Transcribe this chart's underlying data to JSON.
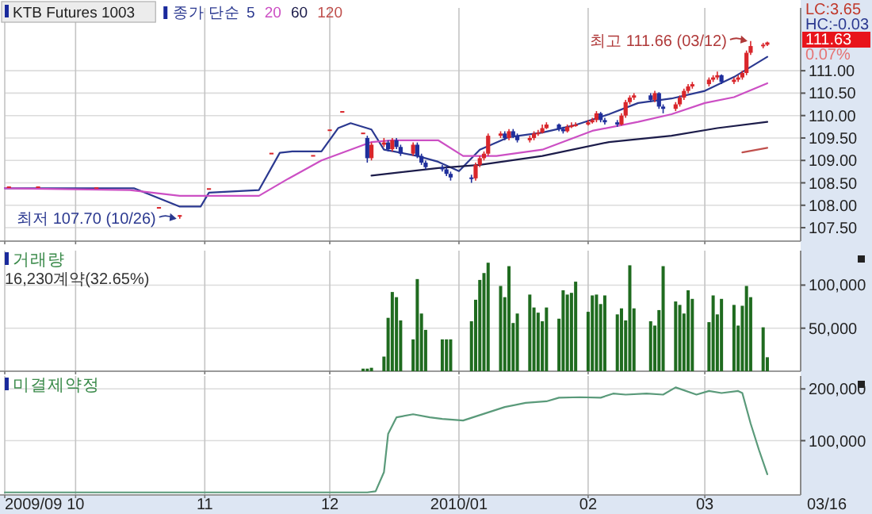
{
  "chart_data": [
    {
      "type": "candlestick",
      "title": "KTB Futures 1003",
      "legend_title": "종가 단순",
      "legend": "top left",
      "grid": true,
      "tick_labels": "y",
      "xlim": [
        "2009-09-14",
        "2010-03-24"
      ],
      "xticks": [
        {
          "value": "2009-09-14",
          "label": null
        },
        {
          "value": "2009-10-01",
          "label": null
        },
        {
          "value": "2009-11-01",
          "label": null
        },
        {
          "value": "2009-12-01",
          "label": null
        },
        {
          "value": "2010-01-01",
          "label": null
        },
        {
          "value": "2010-02-01",
          "label": null
        },
        {
          "value": "2010-03-01",
          "label": null
        }
      ],
      "ylim": [
        107.2,
        112.4
      ],
      "yticks": [
        {
          "value": 107.5,
          "label": "107.50"
        },
        {
          "value": 108,
          "label": "108.00"
        },
        {
          "value": 108.5,
          "label": "108.50"
        },
        {
          "value": 109,
          "label": "109.00"
        },
        {
          "value": 109.5,
          "label": "109.50"
        },
        {
          "value": 110,
          "label": "110.00"
        },
        {
          "value": 110.5,
          "label": "110.50"
        },
        {
          "value": 111,
          "label": "111.00"
        }
      ],
      "x": [
        "2009-09-15",
        "2009-09-22",
        "2009-10-06",
        "2009-10-21",
        "2009-10-26",
        "2009-11-02",
        "2009-11-17",
        "2009-11-27",
        "2009-12-01",
        "2009-12-04",
        "2009-12-09",
        "2009-12-10",
        "2009-12-11",
        "2009-12-14",
        "2009-12-15",
        "2009-12-16",
        "2009-12-17",
        "2009-12-18",
        "2009-12-21",
        "2009-12-22",
        "2009-12-23",
        "2009-12-24",
        "2009-12-28",
        "2009-12-29",
        "2009-12-30",
        "2010-01-04",
        "2010-01-05",
        "2010-01-06",
        "2010-01-07",
        "2010-01-08",
        "2010-01-11",
        "2010-01-12",
        "2010-01-13",
        "2010-01-14",
        "2010-01-15",
        "2010-01-18",
        "2010-01-19",
        "2010-01-20",
        "2010-01-21",
        "2010-01-22",
        "2010-01-25",
        "2010-01-26",
        "2010-01-27",
        "2010-01-28",
        "2010-01-29",
        "2010-02-01",
        "2010-02-02",
        "2010-02-03",
        "2010-02-04",
        "2010-02-05",
        "2010-02-08",
        "2010-02-09",
        "2010-02-10",
        "2010-02-11",
        "2010-02-12",
        "2010-02-16",
        "2010-02-17",
        "2010-02-18",
        "2010-02-19",
        "2010-02-22",
        "2010-02-23",
        "2010-02-24",
        "2010-02-25",
        "2010-02-26",
        "2010-03-02",
        "2010-03-03",
        "2010-03-04",
        "2010-03-05",
        "2010-03-08",
        "2010-03-09",
        "2010-03-10",
        "2010-03-11",
        "2010-03-12",
        "2010-03-15",
        "2010-03-16"
      ],
      "ohlc": [
        [
          108.42,
          108.42,
          108.42,
          108.42
        ],
        [
          108.42,
          108.42,
          108.42,
          108.42
        ],
        [
          108.4,
          108.4,
          108.4,
          108.4
        ],
        [
          107.96,
          107.96,
          107.96,
          107.96
        ],
        [
          107.78,
          107.78,
          107.7,
          107.78
        ],
        [
          108.38,
          108.38,
          108.38,
          108.38
        ],
        [
          109.17,
          109.17,
          109.17,
          109.17
        ],
        [
          109.12,
          109.12,
          109.12,
          109.12
        ],
        [
          109.69,
          109.69,
          109.69,
          109.69
        ],
        [
          110.1,
          110.1,
          110.1,
          110.1
        ],
        [
          109.62,
          109.62,
          109.62,
          109.62
        ],
        [
          109.5,
          109.55,
          108.95,
          109.05
        ],
        [
          109.05,
          109.4,
          109.0,
          109.35
        ],
        [
          109.35,
          109.5,
          109.3,
          109.4
        ],
        [
          109.4,
          109.45,
          109.2,
          109.25
        ],
        [
          109.25,
          109.5,
          109.2,
          109.45
        ],
        [
          109.45,
          109.5,
          109.25,
          109.3
        ],
        [
          109.3,
          109.35,
          109.1,
          109.15
        ],
        [
          109.15,
          109.4,
          109.1,
          109.35
        ],
        [
          109.35,
          109.4,
          109.05,
          109.1
        ],
        [
          109.1,
          109.15,
          108.9,
          108.95
        ],
        [
          108.95,
          109.0,
          108.8,
          108.85
        ],
        [
          108.85,
          108.9,
          108.75,
          108.8
        ],
        [
          108.8,
          108.85,
          108.65,
          108.7
        ],
        [
          108.7,
          108.75,
          108.55,
          108.62
        ],
        [
          108.62,
          108.68,
          108.5,
          108.6
        ],
        [
          108.6,
          108.95,
          108.55,
          108.9
        ],
        [
          108.9,
          109.1,
          108.85,
          109.05
        ],
        [
          109.05,
          109.2,
          109.0,
          109.15
        ],
        [
          109.15,
          109.6,
          109.1,
          109.55
        ],
        [
          109.55,
          109.65,
          109.5,
          109.6
        ],
        [
          109.6,
          109.65,
          109.45,
          109.5
        ],
        [
          109.5,
          109.7,
          109.45,
          109.65
        ],
        [
          109.65,
          109.7,
          109.5,
          109.55
        ],
        [
          109.55,
          109.6,
          109.4,
          109.45
        ],
        [
          109.45,
          109.55,
          109.4,
          109.5
        ],
        [
          109.5,
          109.65,
          109.45,
          109.6
        ],
        [
          109.6,
          109.68,
          109.55,
          109.62
        ],
        [
          109.62,
          109.8,
          109.6,
          109.72
        ],
        [
          109.72,
          109.85,
          109.7,
          109.8
        ],
        [
          109.8,
          109.82,
          109.65,
          109.7
        ],
        [
          109.7,
          109.75,
          109.6,
          109.65
        ],
        [
          109.65,
          109.8,
          109.62,
          109.75
        ],
        [
          109.75,
          109.85,
          109.72,
          109.78
        ],
        [
          109.78,
          109.85,
          109.75,
          109.8
        ],
        [
          109.8,
          109.9,
          109.78,
          109.85
        ],
        [
          109.85,
          109.95,
          109.82,
          109.9
        ],
        [
          109.9,
          110.1,
          109.85,
          110.05
        ],
        [
          110.05,
          110.08,
          109.85,
          109.9
        ],
        [
          109.9,
          109.95,
          109.8,
          109.85
        ],
        [
          109.85,
          109.9,
          109.75,
          109.8
        ],
        [
          109.8,
          110.05,
          109.78,
          110.0
        ],
        [
          110.0,
          110.35,
          109.95,
          110.3
        ],
        [
          110.3,
          110.45,
          110.25,
          110.4
        ],
        [
          110.4,
          110.5,
          110.35,
          110.45
        ],
        [
          110.45,
          110.5,
          110.3,
          110.35
        ],
        [
          110.35,
          110.55,
          110.3,
          110.5
        ],
        [
          110.5,
          110.52,
          110.15,
          110.2
        ],
        [
          110.2,
          110.25,
          110.05,
          110.15
        ],
        [
          110.15,
          110.3,
          110.1,
          110.25
        ],
        [
          110.25,
          110.45,
          110.2,
          110.4
        ],
        [
          110.4,
          110.6,
          110.35,
          110.55
        ],
        [
          110.55,
          110.7,
          110.5,
          110.65
        ],
        [
          110.65,
          110.75,
          110.6,
          110.7
        ],
        [
          110.7,
          110.85,
          110.65,
          110.8
        ],
        [
          110.8,
          110.9,
          110.75,
          110.85
        ],
        [
          110.85,
          110.98,
          110.8,
          110.9
        ],
        [
          110.9,
          110.92,
          110.7,
          110.75
        ],
        [
          110.75,
          110.85,
          110.7,
          110.8
        ],
        [
          110.8,
          110.9,
          110.75,
          110.85
        ],
        [
          110.85,
          111.0,
          110.8,
          110.95
        ],
        [
          110.95,
          111.45,
          110.9,
          111.4
        ],
        [
          111.4,
          111.66,
          111.35,
          111.55
        ],
        [
          111.55,
          111.62,
          111.5,
          111.58
        ],
        [
          111.58,
          111.65,
          111.55,
          111.63
        ]
      ],
      "colors": [
        "#d9262b",
        "#d9262b",
        "#d9262b",
        "#d9262b",
        "#d9262b",
        "#d9262b",
        "#d9262b",
        "#d9262b",
        "#d9262b",
        "#d9262b",
        "#d9262b",
        "#1f2f9c",
        "#d9262b",
        "#d9262b",
        "#1f2f9c",
        "#d9262b",
        "#1f2f9c",
        "#1f2f9c",
        "#d9262b",
        "#1f2f9c",
        "#1f2f9c",
        "#1f2f9c",
        "#1f2f9c",
        "#1f2f9c",
        "#1f2f9c",
        "#1f2f9c",
        "#d9262b",
        "#d9262b",
        "#d9262b",
        "#d9262b",
        "#d9262b",
        "#1f2f9c",
        "#d9262b",
        "#1f2f9c",
        "#1f2f9c",
        "#d9262b",
        "#d9262b",
        "#d9262b",
        "#d9262b",
        "#d9262b",
        "#1f2f9c",
        "#1f2f9c",
        "#d9262b",
        "#d9262b",
        "#d9262b",
        "#d9262b",
        "#d9262b",
        "#d9262b",
        "#1f2f9c",
        "#1f2f9c",
        "#1f2f9c",
        "#d9262b",
        "#d9262b",
        "#d9262b",
        "#d9262b",
        "#1f2f9c",
        "#d9262b",
        "#1f2f9c",
        "#1f2f9c",
        "#d9262b",
        "#d9262b",
        "#d9262b",
        "#d9262b",
        "#d9262b",
        "#d9262b",
        "#d9262b",
        "#d9262b",
        "#1f2f9c",
        "#d9262b",
        "#d9262b",
        "#d9262b",
        "#d9262b",
        "#d9262b",
        "#d9262b",
        "#d9262b"
      ],
      "series": [
        {
          "name": "5",
          "type": "line",
          "color": "#2b3990",
          "x": [
            "2009-09-14",
            "2009-10-15",
            "2009-10-26",
            "2009-10-31",
            "2009-11-02",
            "2009-11-14",
            "2009-11-19",
            "2009-11-22",
            "2009-11-29",
            "2009-12-03",
            "2009-12-06",
            "2009-12-11",
            "2009-12-14",
            "2009-12-22",
            "2009-12-27",
            "2010-01-01",
            "2010-01-06",
            "2010-01-13",
            "2010-01-21",
            "2010-01-29",
            "2010-02-06",
            "2010-02-13",
            "2010-02-21",
            "2010-03-01",
            "2010-03-08",
            "2010-03-16"
          ],
          "values": [
            108.38,
            108.38,
            107.97,
            107.97,
            108.28,
            108.34,
            109.17,
            109.2,
            109.2,
            109.72,
            109.83,
            109.69,
            109.24,
            109.1,
            108.97,
            108.76,
            109.24,
            109.52,
            109.62,
            109.79,
            110.03,
            110.28,
            110.38,
            110.55,
            110.86,
            111.31
          ]
        },
        {
          "name": "20",
          "type": "line",
          "color": "#cc4fc4",
          "x": [
            "2009-09-14",
            "2009-10-14",
            "2009-10-26",
            "2009-11-14",
            "2009-11-21",
            "2009-11-29",
            "2009-12-11",
            "2009-12-16",
            "2009-12-27",
            "2010-01-02",
            "2010-01-10",
            "2010-01-21",
            "2010-02-02",
            "2010-02-13",
            "2010-02-21",
            "2010-03-01",
            "2010-03-08",
            "2010-03-16"
          ],
          "values": [
            108.38,
            108.34,
            108.21,
            108.21,
            108.59,
            109.0,
            109.41,
            109.45,
            109.45,
            109.1,
            109.1,
            109.24,
            109.66,
            109.86,
            110.03,
            110.28,
            110.41,
            110.72
          ]
        },
        {
          "name": "60",
          "type": "line",
          "color": "#1c1c4a",
          "x": [
            "2009-12-11",
            "2009-12-27",
            "2010-01-06",
            "2010-01-21",
            "2010-02-06",
            "2010-02-21",
            "2010-03-04",
            "2010-03-16"
          ],
          "values": [
            108.66,
            108.83,
            108.9,
            109.1,
            109.41,
            109.55,
            109.72,
            109.86
          ]
        },
        {
          "name": "120",
          "type": "line",
          "color": "#c0504d",
          "x": [
            "2010-03-10",
            "2010-03-16"
          ],
          "values": [
            109.18,
            109.28
          ]
        }
      ],
      "annotations": [
        {
          "text": "최고 111.66 (03/12)",
          "x": "2010-03-12",
          "y": 111.66
        },
        {
          "text": "최저 107.70 (10/26)",
          "x": "2009-10-26",
          "y": 107.7
        },
        "LC:3.65",
        "HC:-0.03",
        "111.63",
        "0.07%"
      ]
    },
    {
      "type": "bar",
      "title": "거래량",
      "subtitle": "16,230계약(32.65%)",
      "grid": true,
      "tick_labels": "y",
      "color": "#1f6b1f",
      "xlim": [
        "2009-09-14",
        "2010-03-24"
      ],
      "xticks": [
        {
          "value": "2009-09-14",
          "label": null
        },
        {
          "value": "2009-10-01",
          "label": null
        },
        {
          "value": "2009-11-01",
          "label": null
        },
        {
          "value": "2009-12-01",
          "label": null
        },
        {
          "value": "2010-01-01",
          "label": null
        },
        {
          "value": "2010-02-01",
          "label": null
        },
        {
          "value": "2010-03-01",
          "label": null
        }
      ],
      "ylim": [
        0,
        140000
      ],
      "yticks": [
        {
          "value": 50000,
          "label": "50,000"
        },
        {
          "value": 100000,
          "label": "100,000"
        }
      ],
      "x": [
        "2009-12-09",
        "2009-12-10",
        "2009-12-11",
        "2009-12-14",
        "2009-12-15",
        "2009-12-16",
        "2009-12-17",
        "2009-12-18",
        "2009-12-21",
        "2009-12-22",
        "2009-12-23",
        "2009-12-24",
        "2009-12-28",
        "2009-12-29",
        "2009-12-30",
        "2010-01-04",
        "2010-01-05",
        "2010-01-06",
        "2010-01-07",
        "2010-01-08",
        "2010-01-11",
        "2010-01-12",
        "2010-01-13",
        "2010-01-14",
        "2010-01-15",
        "2010-01-18",
        "2010-01-19",
        "2010-01-20",
        "2010-01-21",
        "2010-01-22",
        "2010-01-25",
        "2010-01-26",
        "2010-01-27",
        "2010-01-28",
        "2010-01-29",
        "2010-02-01",
        "2010-02-02",
        "2010-02-03",
        "2010-02-04",
        "2010-02-05",
        "2010-02-08",
        "2010-02-09",
        "2010-02-10",
        "2010-02-11",
        "2010-02-12",
        "2010-02-16",
        "2010-02-17",
        "2010-02-18",
        "2010-02-19",
        "2010-02-22",
        "2010-02-23",
        "2010-02-24",
        "2010-02-25",
        "2010-02-26",
        "2010-03-02",
        "2010-03-03",
        "2010-03-04",
        "2010-03-05",
        "2010-03-08",
        "2010-03-09",
        "2010-03-10",
        "2010-03-11",
        "2010-03-12",
        "2010-03-15",
        "2010-03-16"
      ],
      "values": [
        3000,
        3000,
        4000,
        17000,
        62000,
        92000,
        86000,
        59000,
        37000,
        107000,
        67000,
        48000,
        37000,
        37000,
        37000,
        58000,
        83000,
        106000,
        114000,
        126000,
        99000,
        86000,
        122000,
        56000,
        67000,
        89000,
        74000,
        68000,
        58000,
        74000,
        61000,
        94000,
        89000,
        91000,
        104000,
        69000,
        88000,
        89000,
        78000,
        88000,
        66000,
        73000,
        59000,
        123000,
        73000,
        58000,
        53000,
        71000,
        122000,
        81000,
        77000,
        67000,
        94000,
        84000,
        57000,
        88000,
        66000,
        84000,
        77000,
        53000,
        76000,
        99000,
        86000,
        51000,
        16230
      ]
    },
    {
      "type": "line",
      "title": "미결제약정",
      "grid": true,
      "color": "#5a9a7a",
      "xlim": [
        "2009-09-14",
        "2010-03-24"
      ],
      "xticks": [
        {
          "value": "2009-09-14",
          "label": "2009/09"
        },
        {
          "value": "2009-10-01",
          "label": "10"
        },
        {
          "value": "2009-11-01",
          "label": "11"
        },
        {
          "value": "2009-12-01",
          "label": "12"
        },
        {
          "value": "2010-01-01",
          "label": "2010/01"
        },
        {
          "value": "2010-02-01",
          "label": "02"
        },
        {
          "value": "2010-03-01",
          "label": "03"
        }
      ],
      "ylim": [
        -5000,
        225000
      ],
      "yticks": [
        {
          "value": 100000,
          "label": "100,000"
        },
        {
          "value": 200000,
          "label": "200,000"
        }
      ],
      "x": [
        "2009-09-14",
        "2009-12-10",
        "2009-12-12",
        "2009-12-14",
        "2009-12-15",
        "2009-12-17",
        "2009-12-21",
        "2009-12-25",
        "2009-12-28",
        "2010-01-02",
        "2010-01-07",
        "2010-01-12",
        "2010-01-17",
        "2010-01-22",
        "2010-01-25",
        "2010-01-30",
        "2010-02-04",
        "2010-02-07",
        "2010-02-10",
        "2010-02-15",
        "2010-02-19",
        "2010-02-22",
        "2010-02-27",
        "2010-03-02",
        "2010-03-05",
        "2010-03-09",
        "2010-03-10",
        "2010-03-12",
        "2010-03-14",
        "2010-03-16"
      ],
      "values": [
        0,
        0,
        2000,
        39000,
        113000,
        145000,
        151000,
        145000,
        142000,
        139000,
        152000,
        165000,
        173000,
        176000,
        183000,
        184000,
        183000,
        191000,
        189000,
        191000,
        189000,
        203000,
        189000,
        196000,
        192000,
        196000,
        192000,
        133000,
        82000,
        35000
      ],
      "annotations": [
        "03/16"
      ]
    }
  ]
}
